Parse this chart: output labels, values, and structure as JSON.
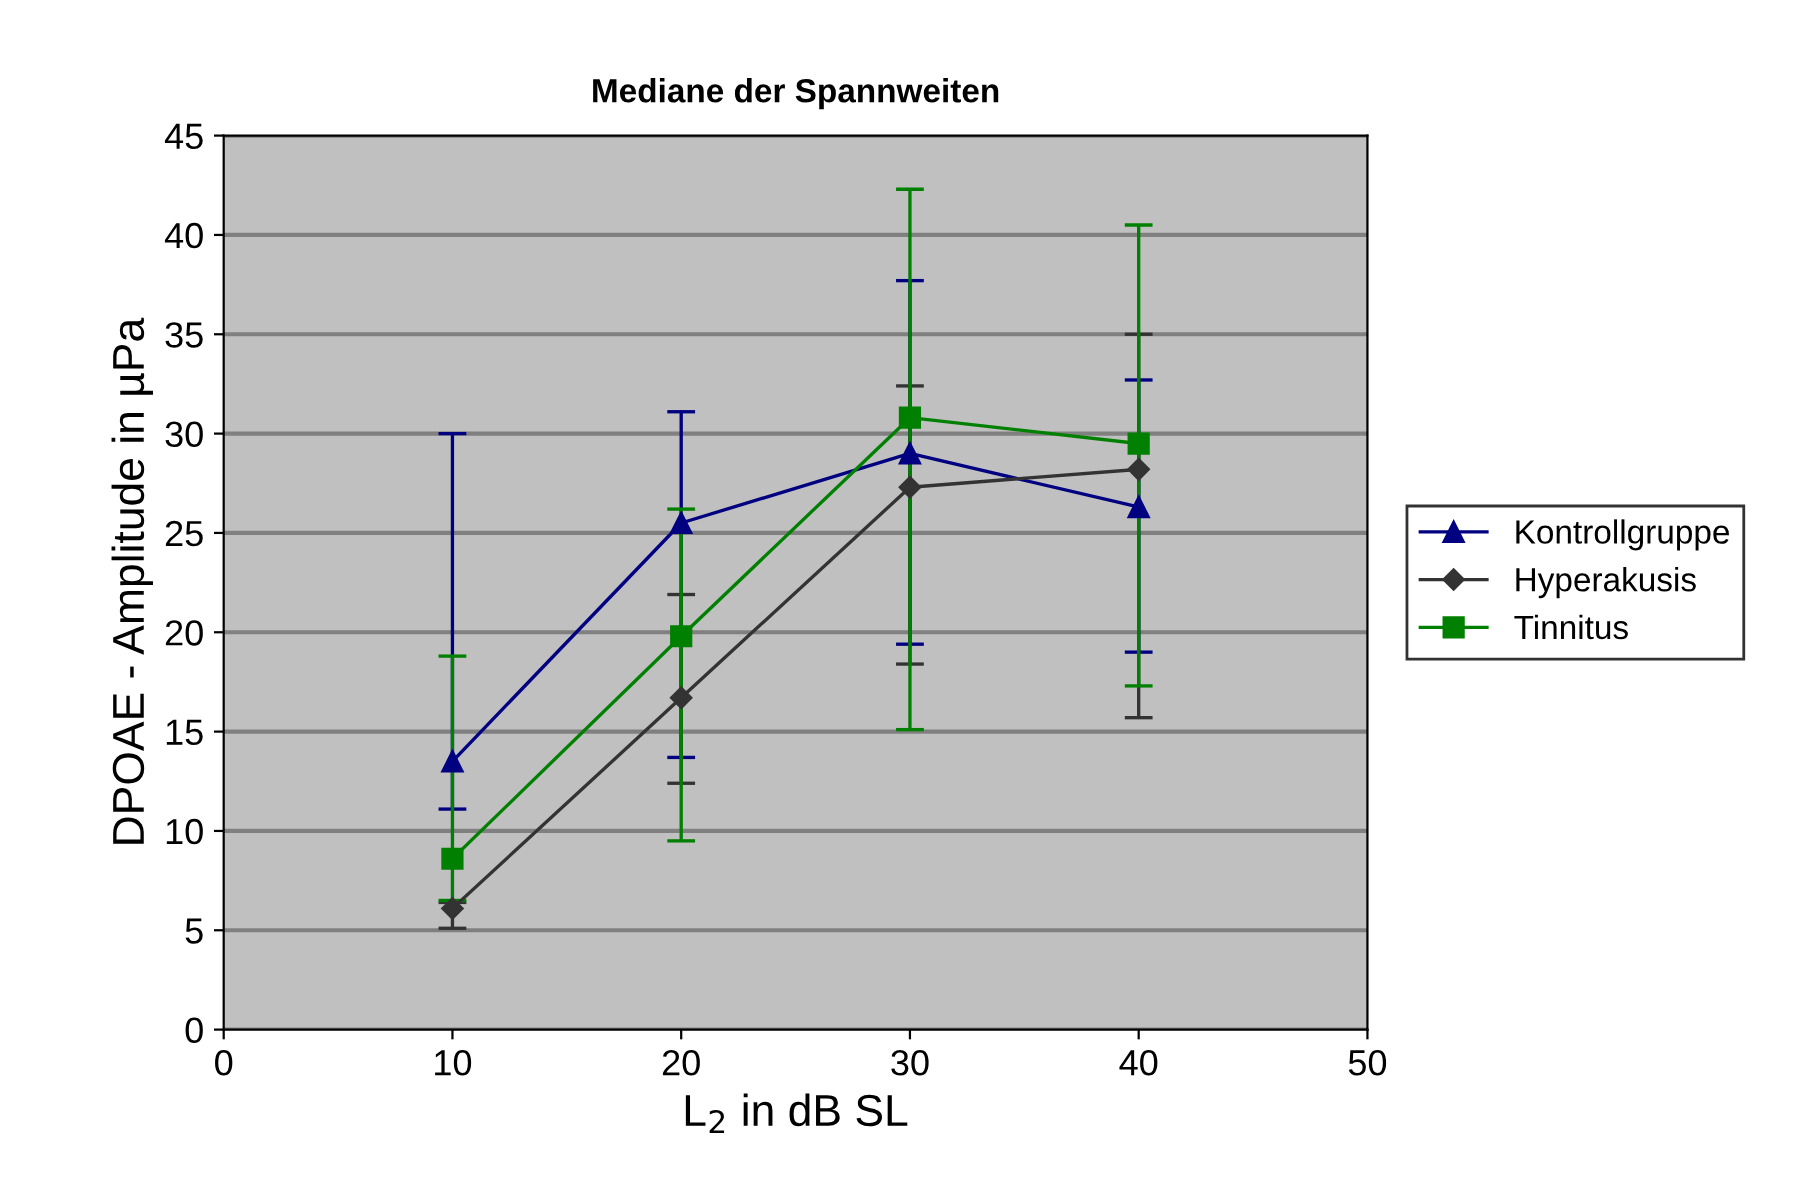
{
  "chart_data": {
    "type": "line",
    "title": "Mediane der Spannweiten",
    "xlabel": "L$_{2}$ in dB SL",
    "ylabel": "DPOAE - Amplitude in µPa",
    "x": [
      10,
      20,
      30,
      40
    ],
    "xlim": [
      0,
      50
    ],
    "xticks": [
      0,
      10,
      20,
      30,
      40,
      50
    ],
    "ylim": [
      0,
      45
    ],
    "yticks": [
      0,
      5,
      10,
      15,
      20,
      25,
      30,
      35,
      40,
      45
    ],
    "grid": "y",
    "legend": "right",
    "series": [
      {
        "name": "Kontrollgruppe",
        "color": "#000080",
        "marker": "triangle",
        "values": [
          13.5,
          25.5,
          29.0,
          26.3
        ],
        "errors": [
          [
            11.1,
            30.0
          ],
          [
            13.7,
            31.1
          ],
          [
            19.4,
            37.7
          ],
          [
            19.0,
            32.7
          ]
        ]
      },
      {
        "name": "Hyperakusis",
        "color": "#333333",
        "marker": "diamond",
        "values": [
          6.1,
          16.7,
          27.3,
          28.2
        ],
        "errors": [
          [
            5.1,
            6.4
          ],
          [
            12.4,
            21.9
          ],
          [
            18.4,
            32.4
          ],
          [
            15.7,
            35.0
          ]
        ]
      },
      {
        "name": "Tinnitus",
        "color": "#008000",
        "marker": "square",
        "values": [
          8.6,
          19.8,
          30.8,
          29.5
        ],
        "errors": [
          [
            6.5,
            18.8
          ],
          [
            9.5,
            26.2
          ],
          [
            15.1,
            42.3
          ],
          [
            17.3,
            40.5
          ]
        ]
      }
    ]
  }
}
